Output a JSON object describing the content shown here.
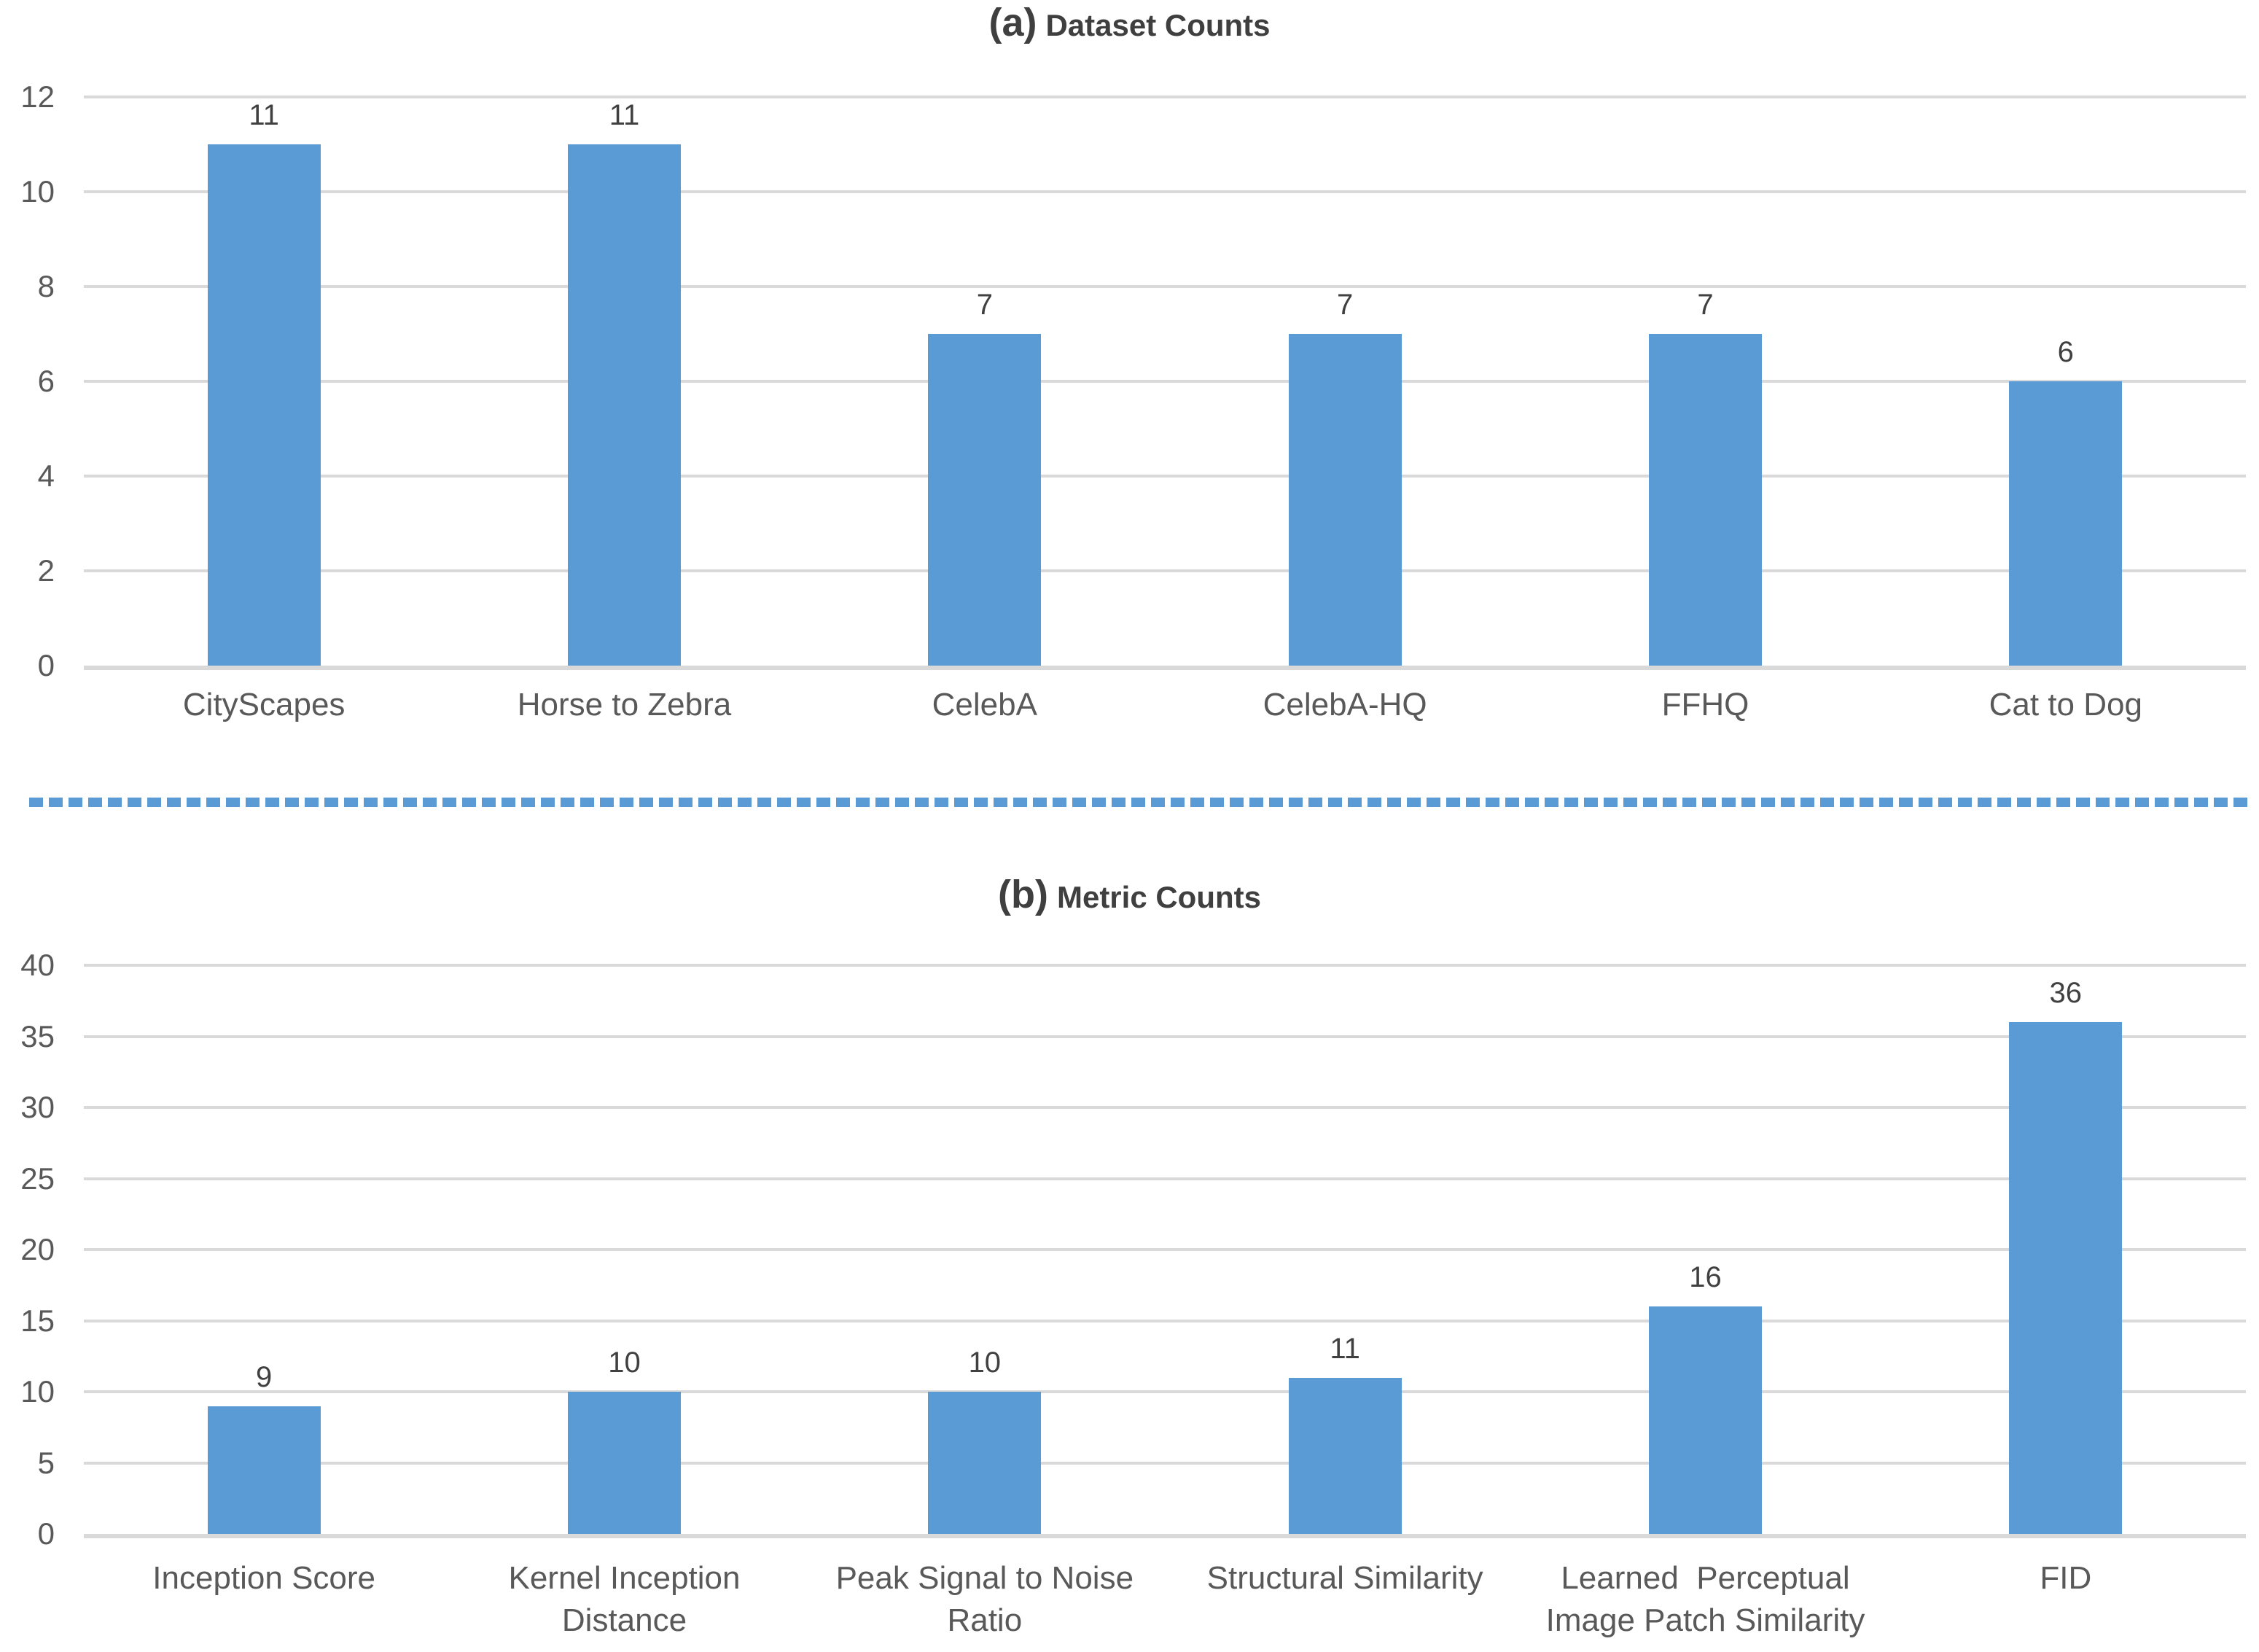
{
  "colors": {
    "bar": "#5b9bd5",
    "gridline": "#d9d9d9",
    "tick_text": "#595959",
    "title_text": "#3f3f3f",
    "value_label_text": "#404040",
    "divider": "#5b9bd5"
  },
  "chart_data": [
    {
      "type": "bar",
      "panel": "a",
      "title_prefix": "(a)",
      "title": "Dataset Counts",
      "categories": [
        "CityScapes",
        "Horse to Zebra",
        "CelebA",
        "CelebA-HQ",
        "FFHQ",
        "Cat to Dog"
      ],
      "values": [
        11,
        11,
        7,
        7,
        7,
        6
      ],
      "y_ticks": [
        0,
        2,
        4,
        6,
        8,
        10,
        12
      ],
      "ylim": [
        0,
        12
      ],
      "xlabel": "",
      "ylabel": "",
      "grid": true,
      "legend": false
    },
    {
      "type": "bar",
      "panel": "b",
      "title_prefix": "(b)",
      "title": "Metric Counts",
      "categories": [
        "Inception Score",
        "Kernel Inception\nDistance",
        "Peak Signal to Noise\nRatio",
        "Structural Similarity",
        "Learned  Perceptual\nImage Patch Similarity",
        "FID"
      ],
      "values": [
        9,
        10,
        10,
        11,
        16,
        36
      ],
      "y_ticks": [
        0,
        5,
        10,
        15,
        20,
        25,
        30,
        35,
        40
      ],
      "ylim": [
        0,
        40
      ],
      "xlabel": "",
      "ylabel": "",
      "grid": true,
      "legend": false
    }
  ]
}
